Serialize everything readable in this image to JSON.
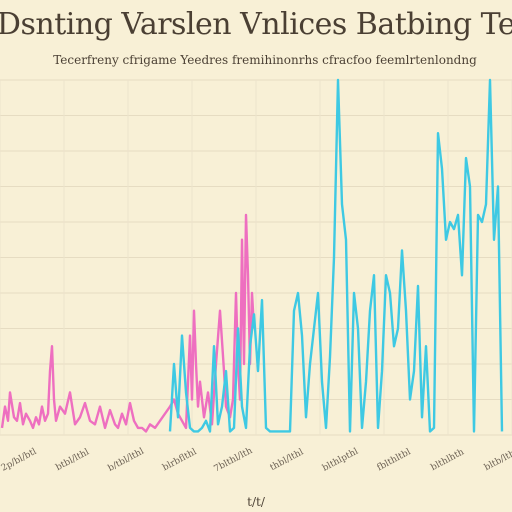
{
  "chart_data": {
    "type": "line",
    "title": "Dsnting Varslen Vnlices Batbing Te",
    "subtitle": "Tecerfreny  cfrigame  Yeedres  fremihinonrhs  cfracfoo  feemlrtenlondng",
    "xlabel": "t/t/",
    "ylabel": "",
    "grid": true,
    "x_tick_labels": [
      "2p/bl/btl",
      "btbl/lthl",
      "b/tbl/lthl",
      "blrbflthl",
      "7blthl/lth",
      "thbl/lthl",
      "blthlpthl",
      "fblthltbl",
      "blthlhth",
      "bltb/lthl"
    ],
    "ylim": [
      0,
      100
    ],
    "series": [
      {
        "color": "#ee6fc0",
        "x": [
          2,
          5,
          8,
          10,
          14,
          17,
          20,
          23,
          26,
          30,
          33,
          36,
          39,
          42,
          45,
          48,
          50,
          52,
          54,
          56,
          60,
          65,
          70,
          75,
          80,
          85,
          90,
          95,
          100,
          105,
          110,
          115,
          118,
          122,
          126,
          130,
          134,
          138,
          142,
          146,
          150,
          155,
          160,
          165,
          170,
          174,
          178,
          182,
          186,
          188,
          190,
          192,
          194,
          196,
          198,
          200,
          204,
          208,
          212,
          216,
          220,
          224,
          226,
          230,
          233,
          236,
          238,
          240,
          242,
          244,
          246,
          248,
          250,
          252,
          254
        ],
        "y": [
          2,
          8,
          4,
          12,
          5,
          4,
          9,
          3,
          6,
          4,
          2,
          5,
          3,
          8,
          4,
          6,
          18,
          25,
          10,
          4,
          8,
          6,
          12,
          3,
          5,
          9,
          4,
          3,
          8,
          2,
          7,
          3,
          2,
          6,
          3,
          9,
          4,
          2,
          2,
          1,
          3,
          2,
          4,
          6,
          8,
          10,
          6,
          4,
          2,
          15,
          28,
          10,
          35,
          20,
          8,
          15,
          5,
          12,
          3,
          20,
          35,
          18,
          8,
          5,
          10,
          40,
          20,
          10,
          55,
          20,
          62,
          45,
          20,
          40,
          30
        ]
      },
      {
        "color": "#3ec9e3",
        "x": [
          170,
          174,
          178,
          182,
          186,
          190,
          194,
          198,
          202,
          206,
          210,
          214,
          218,
          222,
          226,
          230,
          234,
          238,
          242,
          246,
          250,
          254,
          258,
          262,
          266,
          270,
          274,
          278,
          282,
          286,
          290,
          294,
          298,
          302,
          306,
          310,
          314,
          318,
          322,
          326,
          330,
          334,
          338,
          342,
          346,
          350,
          354,
          358,
          362,
          366,
          370,
          374,
          378,
          382,
          386,
          390,
          394,
          398,
          402,
          406,
          410,
          414,
          418,
          422,
          426,
          430,
          434,
          438,
          442,
          446,
          450,
          454,
          458,
          462,
          466,
          470,
          474,
          478,
          482,
          486,
          490,
          494,
          498,
          502
        ],
        "y": [
          1,
          20,
          5,
          28,
          12,
          2,
          1,
          1,
          2,
          4,
          1,
          25,
          3,
          8,
          18,
          1,
          2,
          30,
          8,
          2,
          25,
          34,
          18,
          38,
          2,
          1,
          1,
          1,
          1,
          1,
          1,
          35,
          40,
          28,
          5,
          20,
          30,
          40,
          15,
          2,
          22,
          50,
          100,
          65,
          55,
          1,
          40,
          30,
          2,
          15,
          35,
          45,
          2,
          18,
          45,
          40,
          25,
          30,
          52,
          35,
          10,
          18,
          42,
          5,
          25,
          1,
          2,
          85,
          75,
          55,
          60,
          58,
          62,
          45,
          78,
          70,
          1,
          62,
          60,
          65,
          100,
          55,
          70,
          1
        ]
      }
    ]
  }
}
